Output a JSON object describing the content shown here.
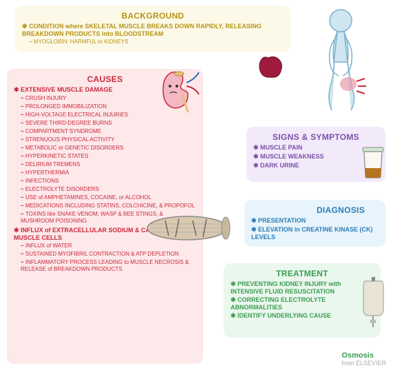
{
  "background": {
    "title": "BACKGROUND",
    "title_color": "#b59416",
    "card_color": "#fdf9e8",
    "headline": "CONDITION where SKELETAL MUSCLE BREAKS DOWN RAPIDLY, RELEASING BREAKDOWN PRODUCTS into BLOODSTREAM",
    "sub": "MYOGLOBIN: HARMFUL to KIDNEYS"
  },
  "causes": {
    "title": "CAUSES",
    "title_color": "#c92a3b",
    "card_color": "#fde8ea",
    "heading1": "EXTENSIVE MUSCLE DAMAGE",
    "items1": [
      "CRUSH INJURY",
      "PROLONGED IMMOBILIZATION",
      "HIGH-VOLTAGE ELECTRICAL INJURIES",
      "SEVERE THIRD-DEGREE BURNS",
      "COMPARTMENT SYNDROME",
      "STRENUOUS PHYSICAL ACTIVITY",
      "METABOLIC or GENETIC DISORDERS",
      "HYPERKINETIC STATES",
      "DELIRIUM TREMENS",
      "HYPERTHERMIA",
      "INFECTIONS",
      "ELECTROLYTE DISORDERS",
      "USE of AMPHETAMINES, COCAINE, or ALCOHOL",
      "MEDICATIONS INCLUDING STATINS, COLCHICINE, & PROPOFOL",
      "TOXINS like SNAKE VENOM, WASP & BEE STINGS, & MUSHROOM POISONING"
    ],
    "heading2": "INFLUX of EXTRACELLULAR SODIUM & CALCIUM into MUSCLE CELLS",
    "items2": [
      "INFLUX of WATER",
      "SUSTAINED MYOFIBRIL CONTRACTION & ATP DEPLETION",
      "INFLAMMATORY PROCESS LEADING to MUSCLE NECROSIS & RELEASE of BREAKDOWN PRODUCTS"
    ]
  },
  "signs": {
    "title": "SIGNS & SYMPTOMS",
    "title_color": "#7b4fa8",
    "card_color": "#f2eafa",
    "items": [
      "MUSCLE PAIN",
      "MUSCLE WEAKNESS",
      "DARK URINE"
    ]
  },
  "diagnosis": {
    "title": "DIAGNOSIS",
    "title_color": "#2a7db8",
    "card_color": "#e8f4fb",
    "items": [
      "PRESENTATION",
      "ELEVATION in CREATINE KINASE (CK) LEVELS"
    ]
  },
  "treatment": {
    "title": "TREATMENT",
    "title_color": "#3a9d52",
    "card_color": "#eaf7ed",
    "items": [
      "PREVENTING KIDNEY INJURY with INTENSIVE FLUID RESUSCITATION",
      "CORRECTING ELECTROLYTE ABNORMALITIES",
      "IDENTIFY UNDERLYING CAUSE"
    ]
  },
  "illustrations": {
    "kidney_color": "#f4b8c4",
    "muscle_color": "#d8c8b0",
    "blob_color": "#9e1b3e",
    "figure_color": "#cfe5f0",
    "urine_color": "#b57520",
    "iv_color": "#e8e0d0"
  },
  "branding": {
    "logo": "Osmosis",
    "from": "from ELSEVIER"
  }
}
